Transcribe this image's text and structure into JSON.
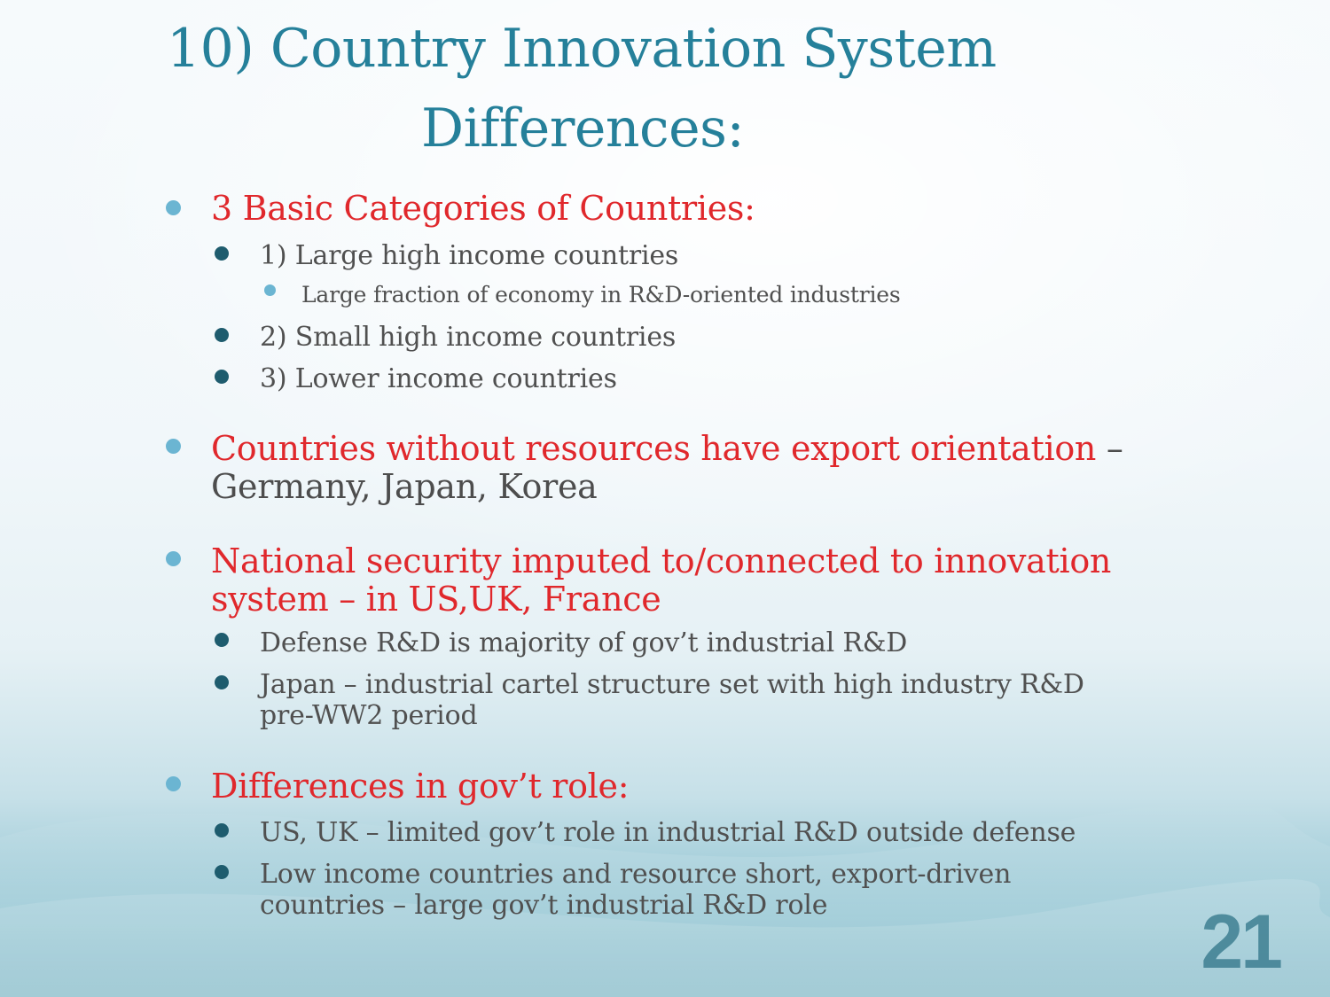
{
  "slide": {
    "title_line1": "10) Country Innovation System",
    "title_line2": "Differences:",
    "page_number": "21"
  },
  "bullets": {
    "categories": "3 Basic Categories of Countries:",
    "cat1": "1) Large high income countries",
    "cat1_sub": "Large fraction of economy in R&D-oriented industries",
    "cat2": "2) Small high income countries",
    "cat3": "3) Lower income countries",
    "export_red": "Countries without resources have export orientation",
    "export_tail": " –",
    "export_line2": "Germany, Japan, Korea",
    "security_line1": "National security imputed to/connected to  innovation",
    "security_line2": "system – in US,UK, France",
    "defense": "Defense R&D is majority of gov’t industrial R&D",
    "japan_line1": "Japan – industrial cartel structure set with high industry R&D",
    "japan_line2": "pre-WW2 period",
    "govrole": "Differences in gov’t role:",
    "us_uk": "US, UK – limited gov’t role in industrial R&D outside defense",
    "low_income_line1": "Low income countries and resource short, export-driven",
    "low_income_line2": "countries – large gov’t industrial R&D role"
  },
  "colors": {
    "title": "#25809a",
    "emphasis": "#e0282c",
    "body": "#4d4d4d",
    "bullet_light": "#6bb5d2",
    "bullet_dark": "#1e5c6e"
  }
}
